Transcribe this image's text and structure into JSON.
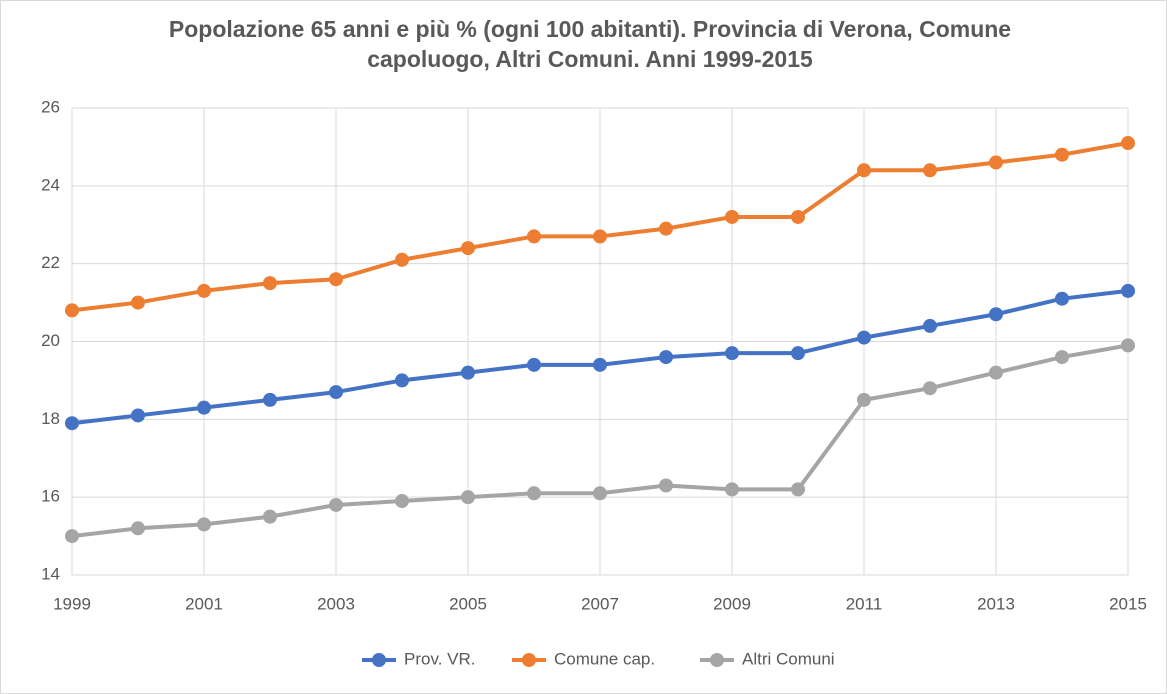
{
  "chart_data": {
    "type": "line",
    "title": "Popolazione 65 anni e più % (ogni 100 abitanti). Provincia di Verona, Comune capoluogo, Altri Comuni. Anni 1999-2015",
    "x": [
      1999,
      2000,
      2001,
      2002,
      2003,
      2004,
      2005,
      2006,
      2007,
      2008,
      2009,
      2010,
      2011,
      2012,
      2013,
      2014,
      2015
    ],
    "series": [
      {
        "name": "Prov. VR.",
        "color": "#4472c4",
        "values": [
          17.9,
          18.1,
          18.3,
          18.5,
          18.7,
          19.0,
          19.2,
          19.4,
          19.4,
          19.6,
          19.7,
          19.7,
          20.1,
          20.4,
          20.7,
          21.1,
          21.3
        ]
      },
      {
        "name": "Comune cap.",
        "color": "#ed7d31",
        "values": [
          20.8,
          21.0,
          21.3,
          21.5,
          21.6,
          22.1,
          22.4,
          22.7,
          22.7,
          22.9,
          23.2,
          23.2,
          24.4,
          24.4,
          24.6,
          24.8,
          25.1
        ]
      },
      {
        "name": "Altri Comuni",
        "color": "#a5a5a5",
        "values": [
          15.0,
          15.2,
          15.3,
          15.5,
          15.8,
          15.9,
          16.0,
          16.1,
          16.1,
          16.3,
          16.2,
          16.2,
          18.5,
          18.8,
          19.2,
          19.6,
          19.9
        ]
      }
    ],
    "xlim": [
      1999,
      2015
    ],
    "xticks": [
      1999,
      2001,
      2003,
      2005,
      2007,
      2009,
      2011,
      2013,
      2015
    ],
    "ylim": [
      14,
      26
    ],
    "yticks": [
      14,
      16,
      18,
      20,
      22,
      24,
      26
    ],
    "grid": true,
    "legend": "bottom"
  }
}
